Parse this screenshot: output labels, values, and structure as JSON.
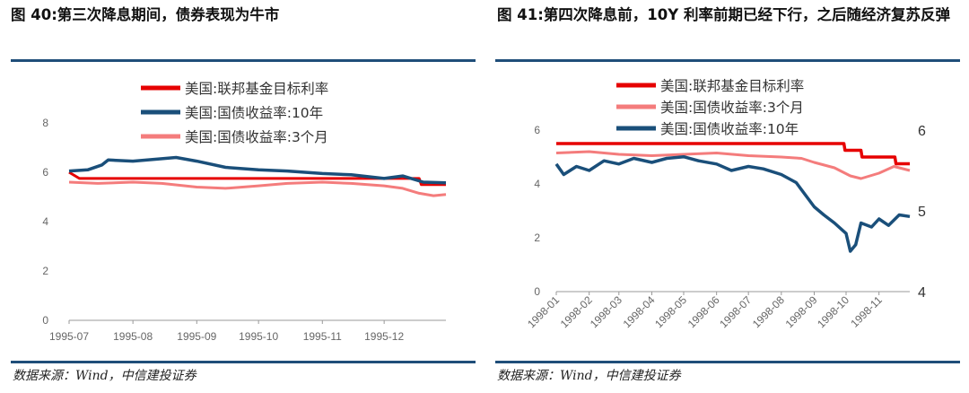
{
  "left": {
    "title": "图 40:第三次降息期间，债券表现为牛市",
    "source": "数据来源：Wind，中信建投证券"
  },
  "right": {
    "title": "图 41:第四次降息前，10Y 利率前期已经下行，之后随经济复苏反弹",
    "source": "数据来源：Wind，中信建投证券"
  },
  "chart_data": [
    {
      "type": "line",
      "title": "图 40:第三次降息期间，债券表现为牛市",
      "x_ticks": [
        "1995-07",
        "1995-08",
        "1995-09",
        "1995-10",
        "1995-11",
        "1995-12"
      ],
      "x_range": [
        "1995-07-01",
        "1995-12-31"
      ],
      "ylim": [
        0,
        8
      ],
      "y_ticks": [
        0,
        2,
        4,
        6,
        8
      ],
      "legend_position": "top-center",
      "series": [
        {
          "name": "美国:联邦基金目标利率",
          "color": "#e60000",
          "x": [
            "1995-07-01",
            "1995-07-06",
            "1995-12-18",
            "1995-12-19",
            "1995-12-31"
          ],
          "values": [
            6.0,
            5.75,
            5.75,
            5.5,
            5.5
          ]
        },
        {
          "name": "美国:国债收益率:10年",
          "color": "#1a4f7a",
          "x": [
            "1995-07-01",
            "1995-07-10",
            "1995-07-17",
            "1995-07-20",
            "1995-08-01",
            "1995-08-15",
            "1995-08-22",
            "1995-09-01",
            "1995-09-15",
            "1995-10-01",
            "1995-10-15",
            "1995-11-01",
            "1995-11-15",
            "1995-12-01",
            "1995-12-10",
            "1995-12-20",
            "1995-12-31"
          ],
          "values": [
            6.05,
            6.1,
            6.3,
            6.5,
            6.45,
            6.55,
            6.6,
            6.45,
            6.2,
            6.1,
            6.05,
            5.95,
            5.9,
            5.75,
            5.85,
            5.6,
            5.57
          ]
        },
        {
          "name": "美国:国债收益率:3个月",
          "color": "#f47c7c",
          "x": [
            "1995-07-01",
            "1995-07-15",
            "1995-08-01",
            "1995-08-15",
            "1995-09-01",
            "1995-09-15",
            "1995-10-01",
            "1995-10-15",
            "1995-11-01",
            "1995-11-15",
            "1995-12-01",
            "1995-12-10",
            "1995-12-18",
            "1995-12-25",
            "1995-12-31"
          ],
          "values": [
            5.6,
            5.55,
            5.6,
            5.55,
            5.4,
            5.35,
            5.45,
            5.55,
            5.6,
            5.55,
            5.45,
            5.35,
            5.15,
            5.05,
            5.1
          ]
        }
      ]
    },
    {
      "type": "line",
      "title": "图 41:第四次降息前，10Y 利率前期已经下行，之后随经济复苏反弹",
      "x_ticks": [
        "1998-01",
        "1998-02",
        "1998-03",
        "1998-04",
        "1998-05",
        "1998-06",
        "1998-07",
        "1998-08",
        "1998-09",
        "1998-10",
        "1998-11"
      ],
      "x_range": [
        "1998-01-01",
        "1998-11-30"
      ],
      "ylim": [
        0,
        6
      ],
      "y_ticks": [
        0,
        2,
        4,
        6
      ],
      "y2lim": [
        4,
        6
      ],
      "y2_ticks": [
        4,
        5,
        6
      ],
      "legend_position": "top-center",
      "series": [
        {
          "name": "美国:联邦基金目标利率",
          "color": "#e60000",
          "axis": "left",
          "x": [
            "1998-01-01",
            "1998-09-29",
            "1998-09-30",
            "1998-10-15",
            "1998-10-16",
            "1998-11-16",
            "1998-11-17",
            "1998-11-30"
          ],
          "values": [
            5.5,
            5.5,
            5.25,
            5.25,
            5.0,
            5.0,
            4.75,
            4.75
          ]
        },
        {
          "name": "美国:国债收益率:3个月",
          "color": "#f47c7c",
          "axis": "left",
          "x": [
            "1998-01-01",
            "1998-02-01",
            "1998-03-01",
            "1998-04-01",
            "1998-05-01",
            "1998-06-01",
            "1998-07-01",
            "1998-08-01",
            "1998-08-20",
            "1998-09-01",
            "1998-09-20",
            "1998-10-05",
            "1998-10-15",
            "1998-11-01",
            "1998-11-15",
            "1998-11-30"
          ],
          "values": [
            5.15,
            5.2,
            5.1,
            5.05,
            5.1,
            5.15,
            5.05,
            5.0,
            4.95,
            4.8,
            4.6,
            4.3,
            4.2,
            4.4,
            4.65,
            4.5
          ]
        },
        {
          "name": "美国:国债收益率:10年",
          "color": "#1a4f7a",
          "axis": "right",
          "x": [
            "1998-01-01",
            "1998-01-08",
            "1998-01-20",
            "1998-02-01",
            "1998-02-15",
            "1998-03-01",
            "1998-03-15",
            "1998-04-01",
            "1998-04-15",
            "1998-05-01",
            "1998-05-15",
            "1998-06-01",
            "1998-06-15",
            "1998-07-01",
            "1998-07-15",
            "1998-08-01",
            "1998-08-15",
            "1998-09-01",
            "1998-09-10",
            "1998-09-20",
            "1998-10-01",
            "1998-10-05",
            "1998-10-10",
            "1998-10-15",
            "1998-10-25",
            "1998-11-01",
            "1998-11-10",
            "1998-11-20",
            "1998-11-30"
          ],
          "values": [
            5.58,
            5.45,
            5.55,
            5.5,
            5.62,
            5.58,
            5.65,
            5.6,
            5.65,
            5.67,
            5.62,
            5.58,
            5.5,
            5.55,
            5.52,
            5.45,
            5.35,
            5.05,
            4.95,
            4.85,
            4.72,
            4.5,
            4.58,
            4.85,
            4.8,
            4.9,
            4.82,
            4.95,
            4.93
          ]
        }
      ]
    }
  ]
}
